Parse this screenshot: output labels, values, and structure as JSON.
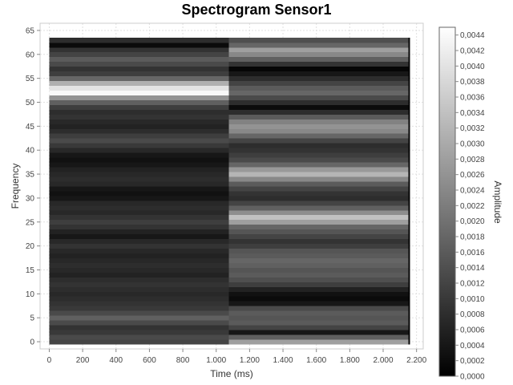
{
  "chart_data": {
    "type": "heatmap",
    "title": "Spectrogram Sensor1",
    "xlabel": "Time (ms)",
    "ylabel": "Frequency",
    "colorbar_label": "Amplitude",
    "colormap": "grayscale",
    "grid": true,
    "xlim": [
      -55,
      2240
    ],
    "ylim": [
      -1.5,
      66.5
    ],
    "x_ticks": [
      0,
      200,
      400,
      600,
      800,
      1000,
      1200,
      1400,
      1600,
      1800,
      2000,
      2200
    ],
    "x_tick_labels": [
      "0",
      "200",
      "400",
      "600",
      "800",
      "1.000",
      "1.200",
      "1.400",
      "1.600",
      "1.800",
      "2.000",
      "2.200"
    ],
    "y_ticks": [
      0,
      5,
      10,
      15,
      20,
      25,
      30,
      35,
      40,
      45,
      50,
      55,
      60,
      65
    ],
    "y_tick_labels": [
      "0",
      "5",
      "10",
      "15",
      "20",
      "25",
      "30",
      "35",
      "40",
      "45",
      "50",
      "55",
      "60",
      "65"
    ],
    "colorbar_range": [
      0,
      0.0045
    ],
    "colorbar_ticks": [
      0,
      0.0002,
      0.0004,
      0.0006,
      0.0008,
      0.001,
      0.0012,
      0.0014,
      0.0016,
      0.0018,
      0.002,
      0.0022,
      0.0024,
      0.0026,
      0.0028,
      0.003,
      0.0032,
      0.0034,
      0.0036,
      0.0038,
      0.004,
      0.0042,
      0.0044
    ],
    "colorbar_tick_labels": [
      "0,0000",
      "0,0002",
      "0,0004",
      "0,0006",
      "0,0008",
      "0,0010",
      "0,0012",
      "0,0014",
      "0,0016",
      "0,0018",
      "0,0020",
      "0,0022",
      "0,0024",
      "0,0026",
      "0,0028",
      "0,0030",
      "0,0032",
      "0,0034",
      "0,0036",
      "0,0038",
      "0,0040",
      "0,0042",
      "0,0044"
    ],
    "time_bins": [
      {
        "x_start": 0,
        "x_end": 1075
      },
      {
        "x_start": 1075,
        "x_end": 2150
      },
      {
        "x_start": 2150,
        "x_end": 2160
      }
    ],
    "freq_bins": [
      0,
      1,
      2,
      3,
      4,
      5,
      6,
      7,
      8,
      9,
      10,
      11,
      12,
      13,
      14,
      15,
      16,
      17,
      18,
      19,
      20,
      21,
      22,
      23,
      24,
      25,
      26,
      27,
      28,
      29,
      30,
      31,
      32,
      33,
      34,
      35,
      36,
      37,
      38,
      39,
      40,
      41,
      42,
      43,
      44,
      45,
      46,
      47,
      48,
      49,
      50,
      51,
      52,
      53,
      54,
      55,
      56,
      57,
      58,
      59,
      60,
      61,
      62,
      63
    ],
    "amplitude_col1": [
      0.0012,
      0.0013,
      0.001,
      0.0009,
      0.0013,
      0.0017,
      0.0013,
      0.001,
      0.0009,
      0.0008,
      0.0007,
      0.0008,
      0.0009,
      0.0008,
      0.0006,
      0.0007,
      0.0008,
      0.0007,
      0.0006,
      0.0007,
      0.0009,
      0.0007,
      0.0004,
      0.0006,
      0.0009,
      0.0011,
      0.0009,
      0.0007,
      0.0008,
      0.0007,
      0.0004,
      0.0003,
      0.0004,
      0.0007,
      0.0008,
      0.0007,
      0.0006,
      0.0004,
      0.0003,
      0.0004,
      0.0007,
      0.001,
      0.0013,
      0.0011,
      0.0008,
      0.0006,
      0.0007,
      0.0009,
      0.0008,
      0.0011,
      0.0017,
      0.0026,
      0.0044,
      0.004,
      0.0031,
      0.0018,
      0.0011,
      0.0009,
      0.0013,
      0.0016,
      0.0012,
      0.0009,
      0.0002,
      0.0008
    ],
    "amplitude_col2": [
      0.0028,
      0.0017,
      0.0004,
      0.0012,
      0.0016,
      0.0015,
      0.0016,
      0.0013,
      0.0004,
      0.0002,
      0.0003,
      0.0006,
      0.0011,
      0.0014,
      0.0016,
      0.0015,
      0.0017,
      0.0018,
      0.0016,
      0.0015,
      0.0011,
      0.0009,
      0.0012,
      0.0015,
      0.0018,
      0.0028,
      0.0034,
      0.0025,
      0.0017,
      0.0012,
      0.0008,
      0.0009,
      0.0012,
      0.0016,
      0.0024,
      0.0032,
      0.0027,
      0.0018,
      0.0013,
      0.0011,
      0.0009,
      0.0008,
      0.0012,
      0.0018,
      0.0024,
      0.0026,
      0.0023,
      0.0016,
      0.0008,
      0.0002,
      0.0008,
      0.0013,
      0.0018,
      0.0016,
      0.0012,
      0.0008,
      0.0004,
      0.0001,
      0.0009,
      0.0017,
      0.0024,
      0.0028,
      0.0018,
      0.0014
    ],
    "amplitude_col3": [
      0.0001,
      0.0001,
      0.0001,
      0.0001,
      0.0001,
      0.0001,
      0.0001,
      0.0001,
      0.0001,
      0.0001,
      0.0001,
      0.0001,
      0.0001,
      0.0001,
      0.0001,
      0.0001,
      0.0001,
      0.0001,
      0.0001,
      0.0001,
      0.0001,
      0.0001,
      0.0001,
      0.0001,
      0.0001,
      0.0001,
      0.0001,
      0.0001,
      0.0001,
      0.0001,
      0.0001,
      0.0001,
      0.0001,
      0.0001,
      0.0001,
      0.0001,
      0.0001,
      0.0001,
      0.0001,
      0.0001,
      0.0001,
      0.0001,
      0.0001,
      0.0001,
      0.0001,
      0.0001,
      0.0001,
      0.0001,
      0.0001,
      0.0001,
      0.0001,
      0.0001,
      0.0001,
      0.0001,
      0.0001,
      0.0001,
      0.0001,
      0.0001,
      0.0001,
      0.0001,
      0.0001,
      0.0001,
      0.0001,
      0.0001
    ]
  }
}
